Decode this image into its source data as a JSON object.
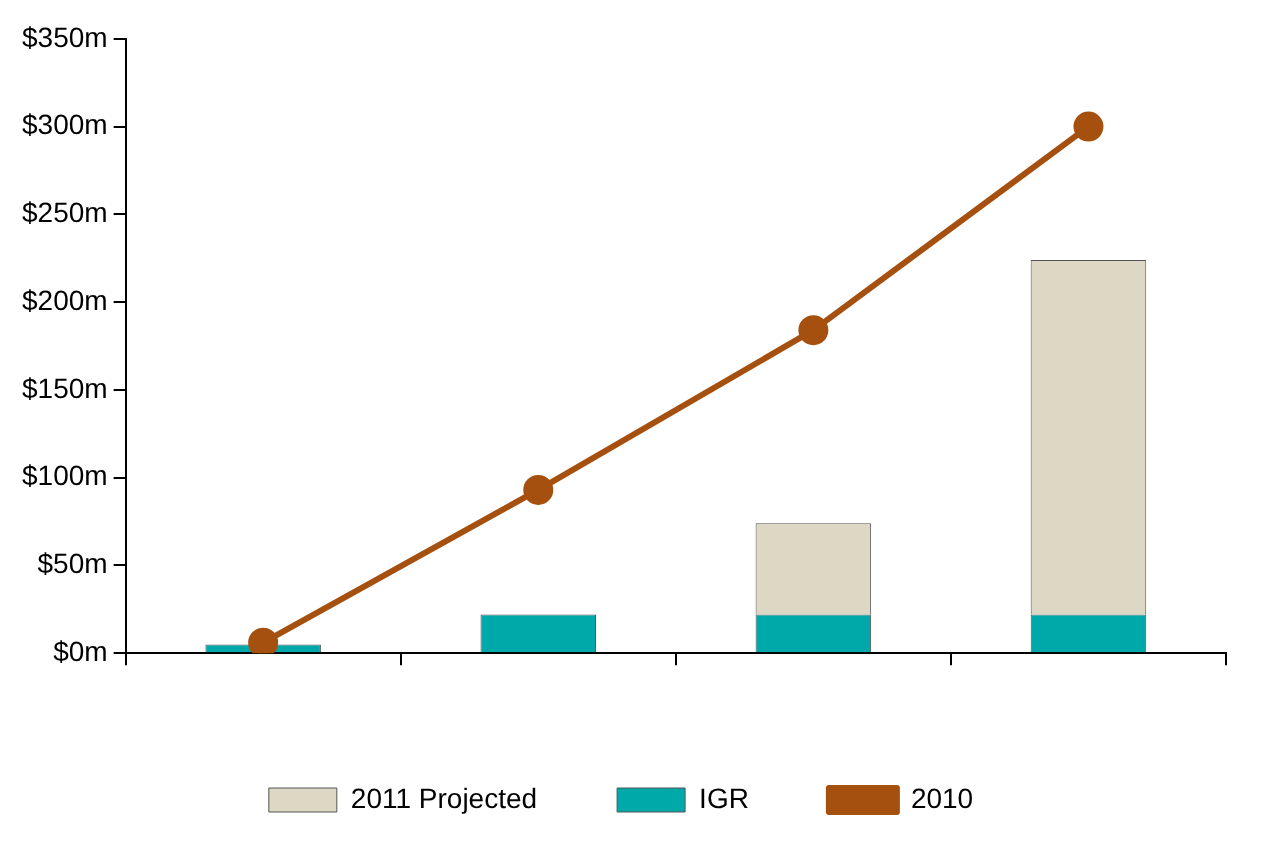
{
  "chart_data": {
    "type": "bar",
    "stacked": true,
    "categories": [
      null,
      null,
      null,
      null
    ],
    "series": [
      {
        "name": "IGR",
        "color": "#00a9a9",
        "values": [
          5,
          22,
          22,
          22
        ]
      },
      {
        "name": "2011 Projected",
        "color": "#ddd8c4",
        "values": [
          null,
          null,
          52,
          202
        ]
      },
      {
        "name": "2010",
        "type": "line",
        "color": "#a5500f",
        "values": [
          6,
          93,
          184,
          300
        ]
      }
    ],
    "marker": "circle",
    "line_style": "solid",
    "ylim": [
      0,
      350
    ],
    "yticks": [
      {
        "value": 0,
        "label": "$0m"
      },
      {
        "value": 50,
        "label": "$50m"
      },
      {
        "value": 100,
        "label": "$100m"
      },
      {
        "value": 150,
        "label": "$150m"
      },
      {
        "value": 200,
        "label": "$200m"
      },
      {
        "value": 250,
        "label": "$250m"
      },
      {
        "value": 300,
        "label": "$300m"
      },
      {
        "value": 350,
        "label": "$350m"
      }
    ],
    "legend": "bottom"
  }
}
